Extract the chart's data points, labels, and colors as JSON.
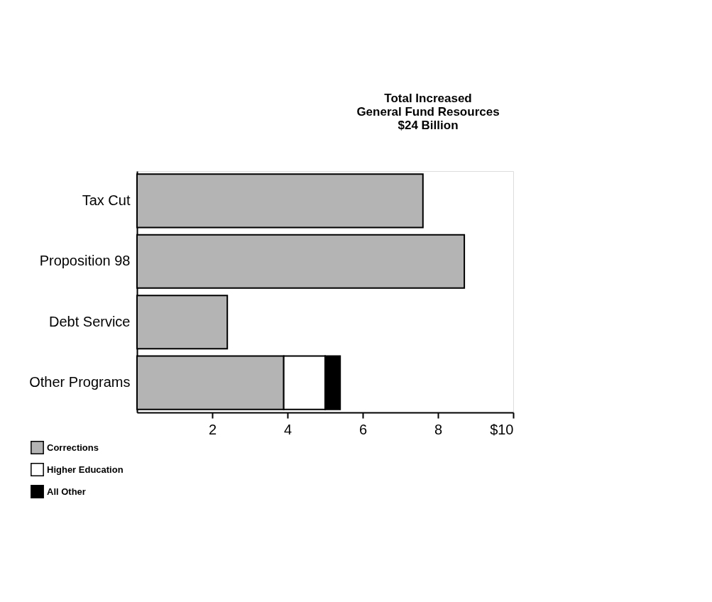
{
  "chart_data": {
    "type": "bar",
    "orientation": "horizontal",
    "stacked": true,
    "categories": [
      "Tax Cut",
      "Proposition 98",
      "Debt Service",
      "Other Programs"
    ],
    "series": [
      {
        "color": "#b4b4b4",
        "values": [
          7.6,
          8.7,
          2.4,
          null
        ]
      },
      {
        "name": "Corrections",
        "color": "#b4b4b4",
        "values": [
          null,
          null,
          null,
          3.9
        ]
      },
      {
        "name": "Higher Education",
        "color": "#ffffff",
        "values": [
          null,
          null,
          null,
          1.1
        ]
      },
      {
        "name": "All Other",
        "color": "#000000",
        "values": [
          null,
          null,
          null,
          0.4
        ]
      }
    ],
    "xlim": [
      0,
      10
    ],
    "xticks": [
      2,
      4,
      6,
      8,
      {
        "value": 10,
        "label": "$10"
      }
    ],
    "grid": false,
    "legend": "bottom left",
    "annotations": [
      "Total Increased\nGeneral Fund Resources\n$24 Billion"
    ]
  }
}
